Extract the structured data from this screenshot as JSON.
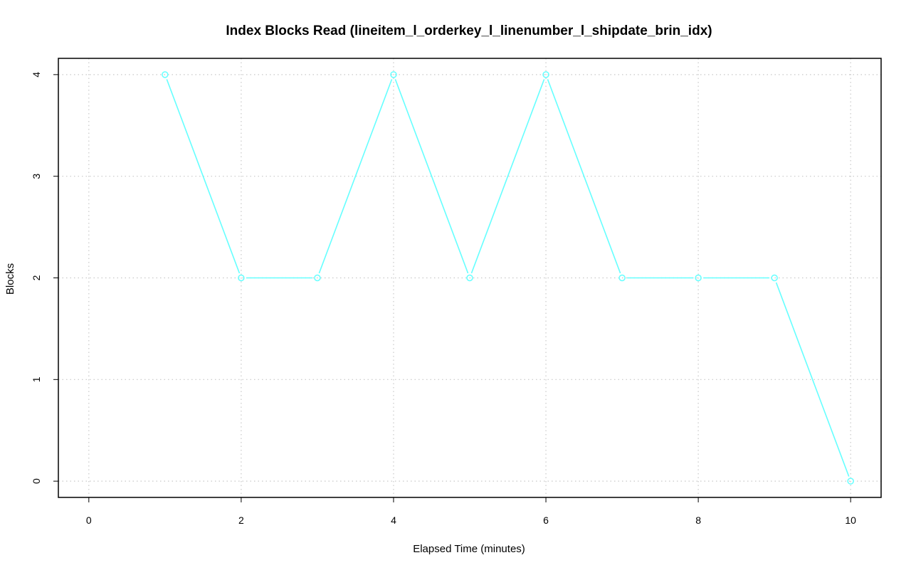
{
  "chart_data": {
    "type": "line",
    "title": "Index Blocks Read (lineitem_l_orderkey_l_linenumber_l_shipdate_brin_idx)",
    "xlabel": "Elapsed Time (minutes)",
    "ylabel": "Blocks",
    "xlim": [
      -0.4,
      10.4
    ],
    "ylim": [
      -0.16,
      4.16
    ],
    "xticks": [
      0,
      2,
      4,
      6,
      8,
      10
    ],
    "yticks": [
      0,
      1,
      2,
      3,
      4
    ],
    "grid": true,
    "x": [
      1,
      2,
      3,
      4,
      5,
      6,
      7,
      8,
      9,
      10
    ],
    "series": [
      {
        "values": [
          4,
          2,
          2,
          4,
          2,
          4,
          2,
          2,
          2,
          0
        ],
        "color": "#66ffff",
        "marker": "circle"
      }
    ]
  }
}
